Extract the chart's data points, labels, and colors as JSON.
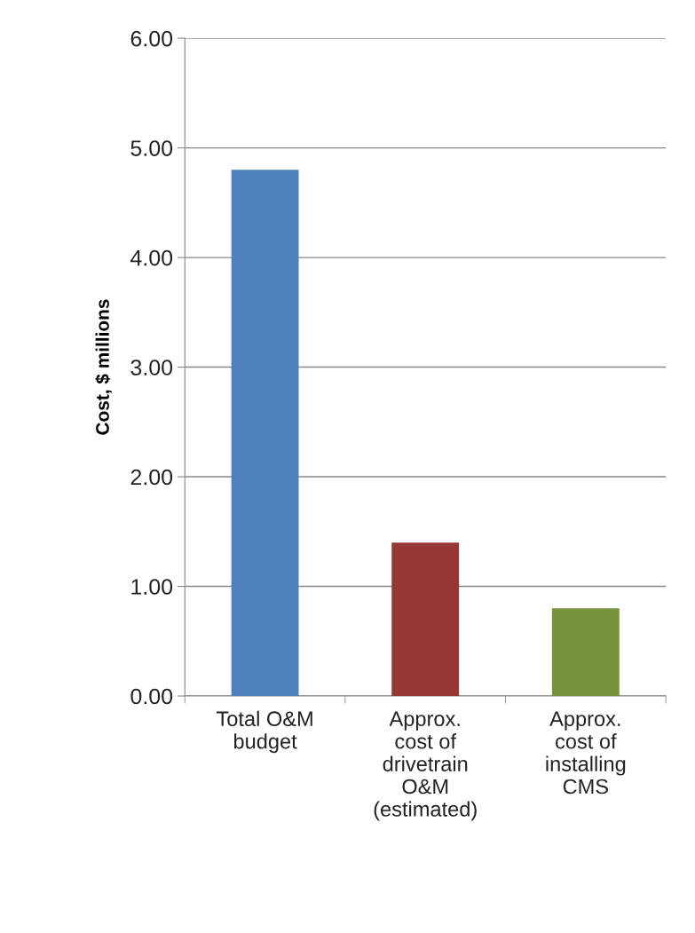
{
  "chart_data": {
    "type": "bar",
    "ylabel": "Cost, $ millions",
    "categories": [
      "Total O&M\nbudget",
      "Approx.\ncost of\ndrivetrain\nO&M\n(estimated)",
      "Approx.\ncost of\ninstalling\nCMS"
    ],
    "values": [
      4.8,
      1.4,
      0.8
    ],
    "colors": [
      "#4f81bd",
      "#953735",
      "#77933c"
    ],
    "ylim": [
      0,
      6
    ],
    "yticks": [
      {
        "value": 0,
        "label": "0.00"
      },
      {
        "value": 1,
        "label": "1.00"
      },
      {
        "value": 2,
        "label": "2.00"
      },
      {
        "value": 3,
        "label": "3.00"
      },
      {
        "value": 4,
        "label": "4.00"
      },
      {
        "value": 5,
        "label": "5.00"
      },
      {
        "value": 6,
        "label": "6.00"
      }
    ],
    "grid": "y",
    "legend": false
  }
}
